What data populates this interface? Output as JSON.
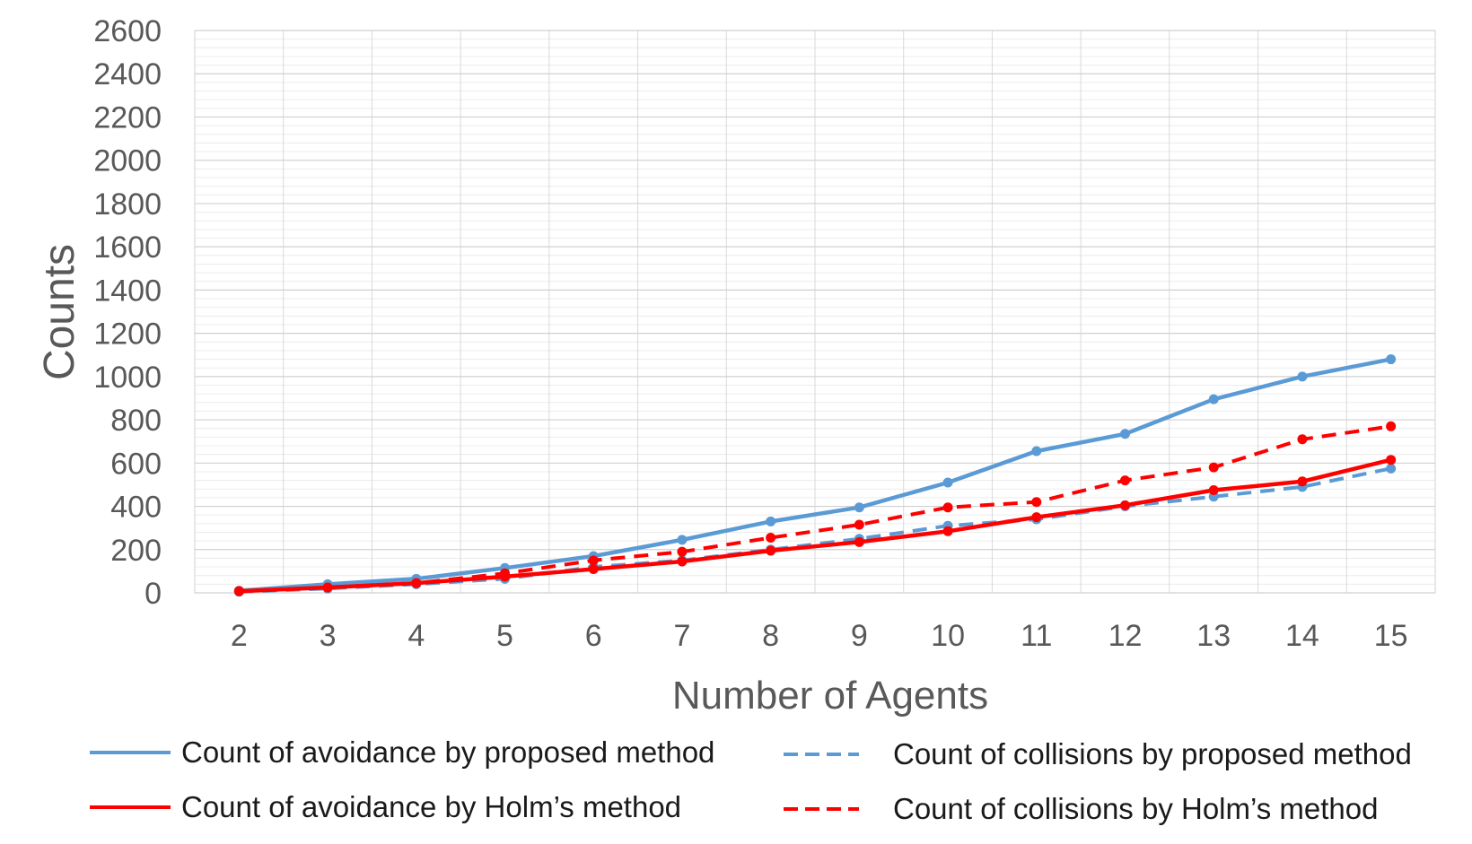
{
  "chart_data": {
    "type": "line",
    "xlabel": "Number of Agents",
    "ylabel": "Counts",
    "categories": [
      "2",
      "3",
      "4",
      "5",
      "6",
      "7",
      "8",
      "9",
      "10",
      "11",
      "12",
      "13",
      "14",
      "15"
    ],
    "ylim": [
      0,
      2600
    ],
    "yticks": [
      "0",
      "200",
      "400",
      "600",
      "800",
      "1000",
      "1200",
      "1400",
      "1600",
      "1800",
      "2000",
      "2200",
      "2400",
      "2600"
    ],
    "grid": true,
    "legend_position": "bottom",
    "series": [
      {
        "name": "Count of avoidance by proposed method",
        "color": "#5B9BD5",
        "dashed": false,
        "values": [
          10,
          40,
          65,
          115,
          170,
          245,
          330,
          395,
          510,
          655,
          735,
          895,
          1000,
          1080
        ]
      },
      {
        "name": "Count of collisions by proposed method",
        "color": "#5B9BD5",
        "dashed": true,
        "values": [
          5,
          20,
          40,
          65,
          120,
          150,
          200,
          250,
          310,
          340,
          400,
          445,
          490,
          575
        ]
      },
      {
        "name": "Count of avoidance by Holm’s method",
        "color": "#FF0000",
        "dashed": false,
        "values": [
          8,
          25,
          45,
          75,
          110,
          145,
          195,
          235,
          285,
          350,
          405,
          475,
          515,
          615
        ]
      },
      {
        "name": "Count of collisions by Holm’s method",
        "color": "#FF0000",
        "dashed": true,
        "values": [
          8,
          25,
          45,
          90,
          150,
          190,
          255,
          315,
          395,
          420,
          520,
          580,
          710,
          770
        ]
      }
    ]
  }
}
